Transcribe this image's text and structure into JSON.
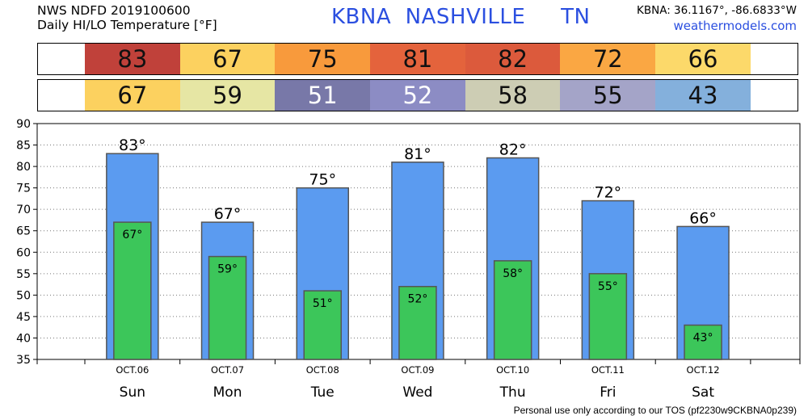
{
  "header": {
    "line1": "NWS NDFD 2019100600",
    "line2": "Daily HI/LO Temperature [°F]",
    "station": "KBNA  NASHVILLE     TN",
    "coords": "KBNA: 36.1167°, -86.6833°W",
    "site": "weathermodels.com"
  },
  "hi_strip": [
    {
      "value": "83",
      "color": "#c0413a"
    },
    {
      "value": "67",
      "color": "#fcd15f"
    },
    {
      "value": "75",
      "color": "#f89a3c"
    },
    {
      "value": "81",
      "color": "#e4633c"
    },
    {
      "value": "82",
      "color": "#dc5a3c"
    },
    {
      "value": "72",
      "color": "#faa743"
    },
    {
      "value": "66",
      "color": "#fcd96a"
    }
  ],
  "lo_strip": [
    {
      "value": "67",
      "color": "#fcd15f"
    },
    {
      "value": "59",
      "color": "#e6e6a4"
    },
    {
      "value": "51",
      "color": "#7878a8",
      "light": true
    },
    {
      "value": "52",
      "color": "#8c8cc4",
      "light": true
    },
    {
      "value": "58",
      "color": "#cdcdb4"
    },
    {
      "value": "55",
      "color": "#a4a4c8"
    },
    {
      "value": "43",
      "color": "#84b0dc"
    }
  ],
  "chart_data": {
    "type": "bar",
    "categories": [
      "Sun",
      "Mon",
      "Tue",
      "Wed",
      "Thu",
      "Fri",
      "Sat"
    ],
    "dates": [
      "OCT.06",
      "OCT.07",
      "OCT.08",
      "OCT.09",
      "OCT.10",
      "OCT.11",
      "OCT.12"
    ],
    "series": [
      {
        "values": [
          83,
          67,
          75,
          81,
          82,
          72,
          66
        ],
        "color": "#5b9bf0",
        "label_suffix": "°"
      },
      {
        "values": [
          67,
          59,
          51,
          52,
          58,
          55,
          43
        ],
        "color": "#3cc65a",
        "label_suffix": "°"
      }
    ],
    "ylim": [
      35,
      90
    ],
    "yticks": [
      35,
      40,
      45,
      50,
      55,
      60,
      65,
      70,
      75,
      80,
      85,
      90
    ],
    "grid": true
  },
  "footer": "Personal use only according to our TOS (pf2230w9CKBNA0p239)"
}
